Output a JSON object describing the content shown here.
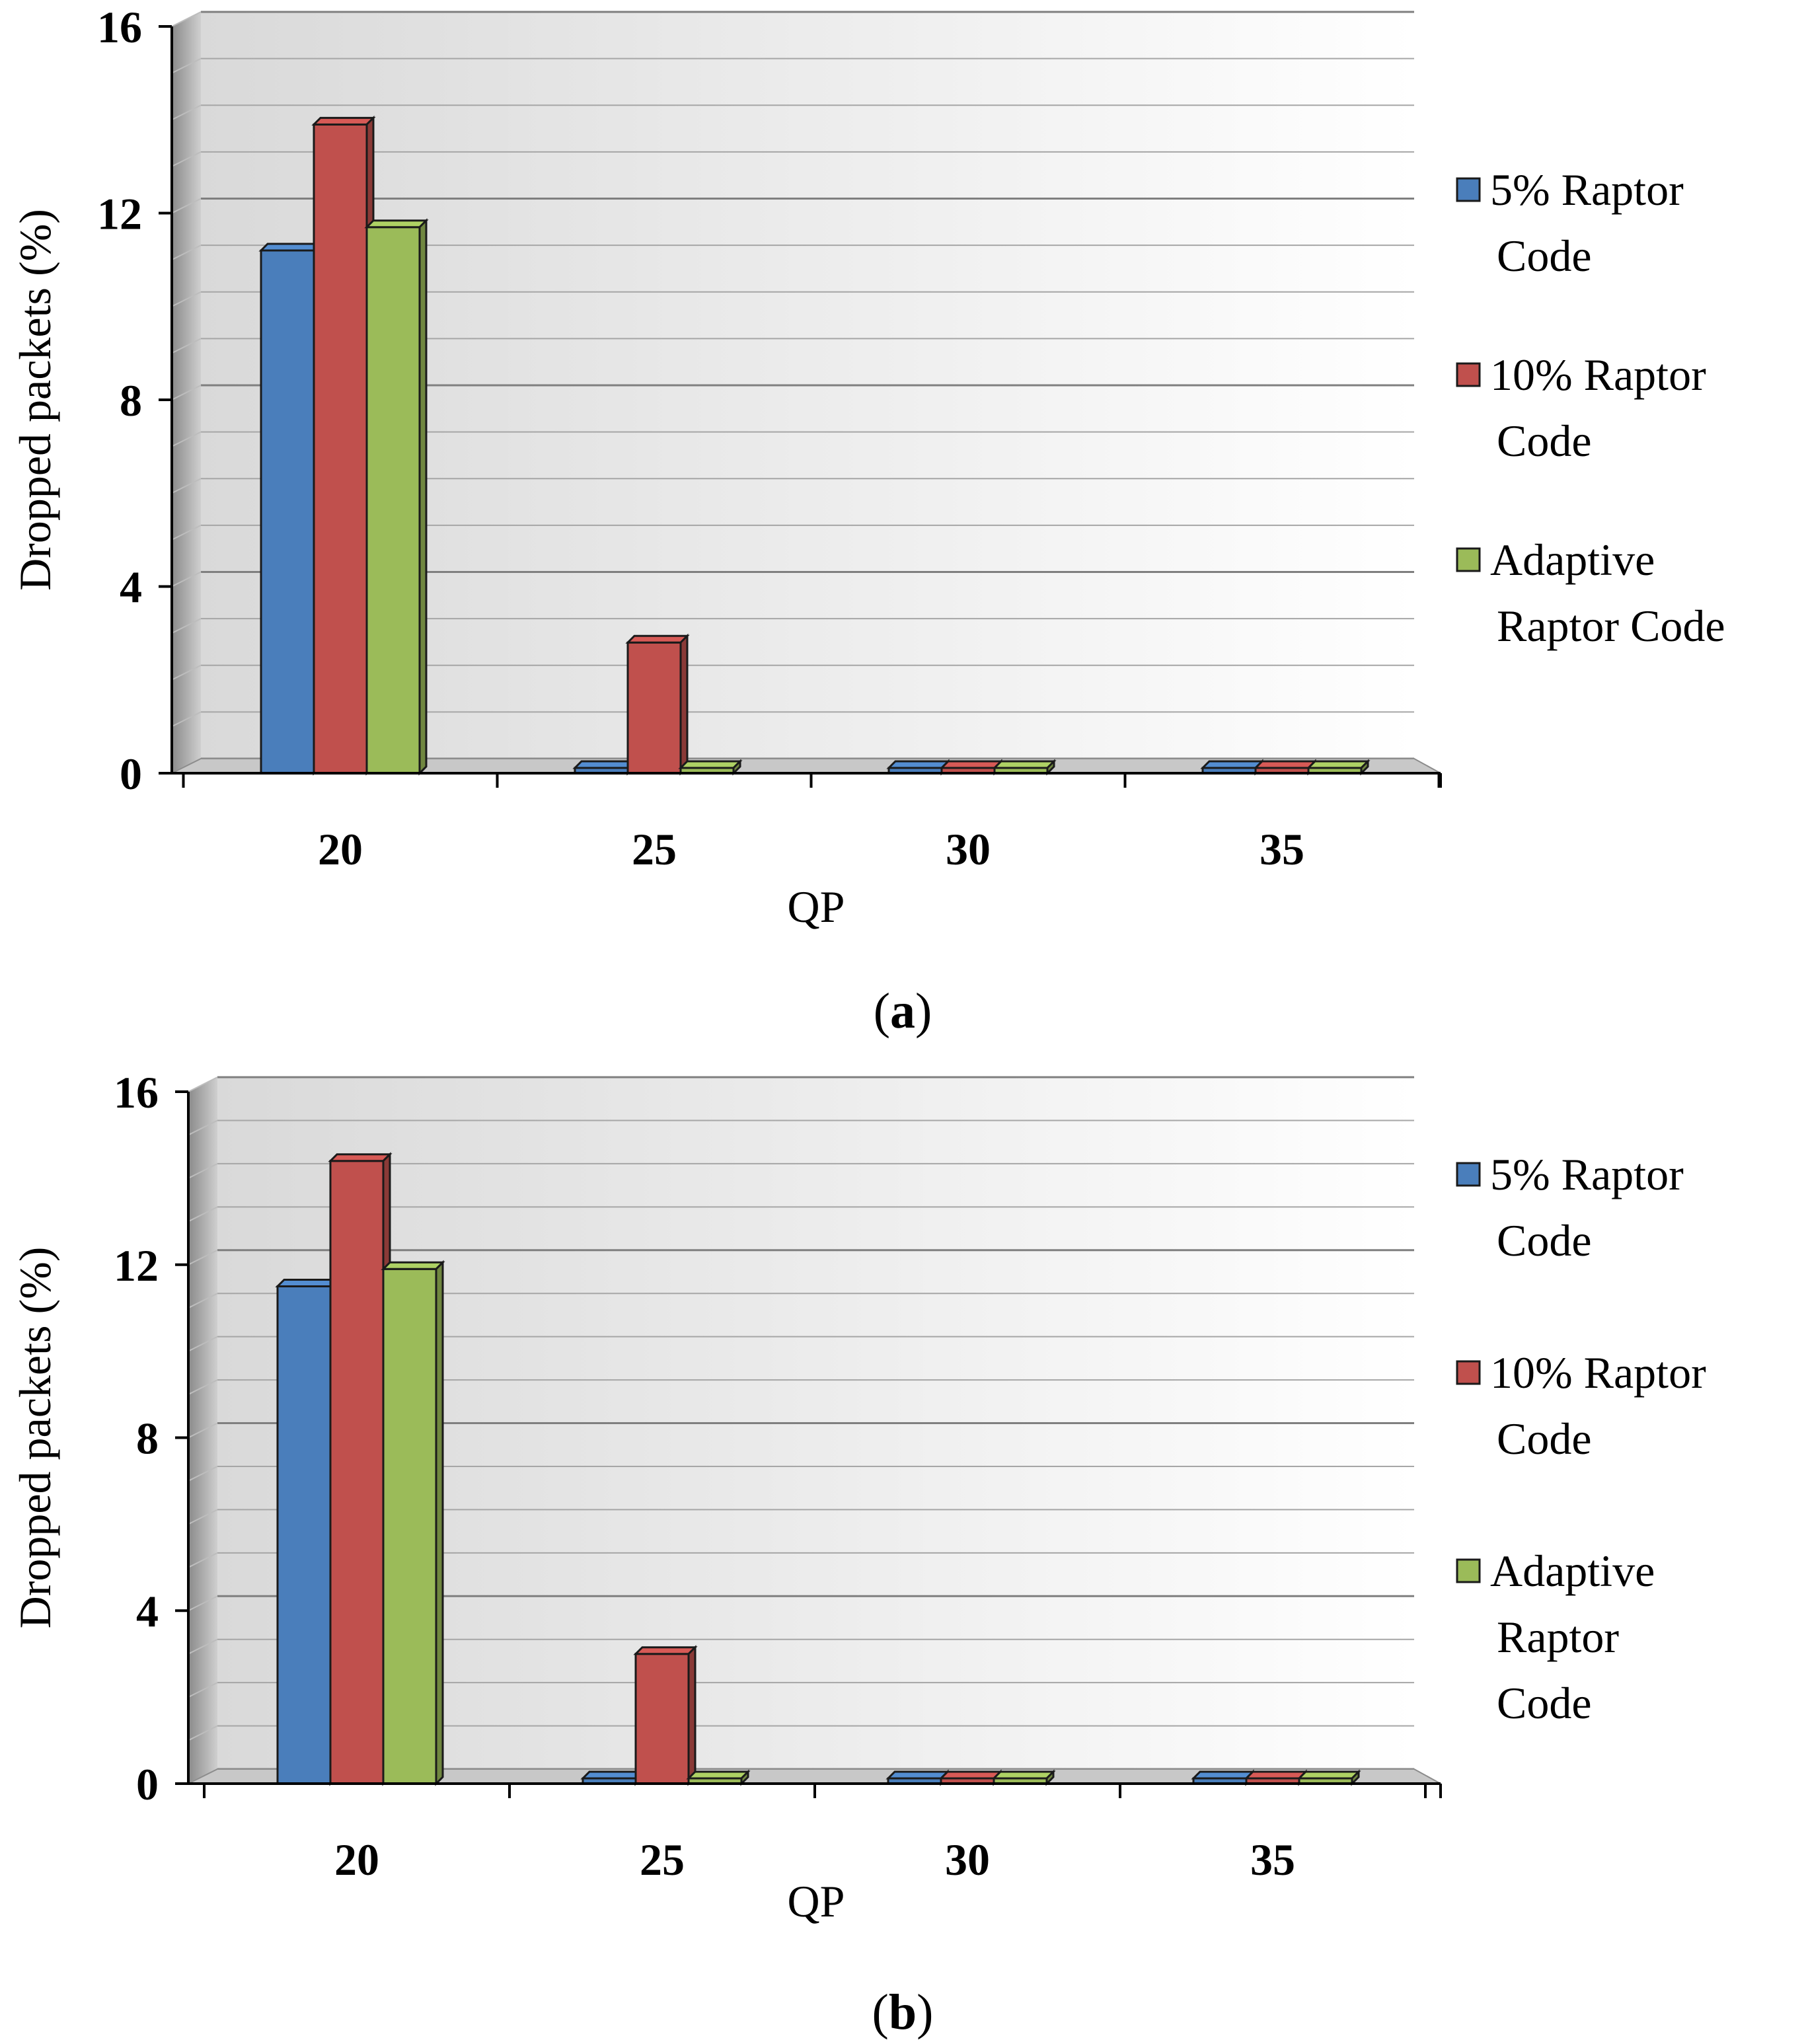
{
  "chart_data": [
    {
      "type": "bar",
      "panel_label": "a",
      "xlabel": "QP",
      "ylabel": "Dropped packets (%)",
      "categories": [
        "20",
        "25",
        "30",
        "35"
      ],
      "ylim": [
        0,
        16
      ],
      "yticks": [
        "0",
        "4",
        "8",
        "12",
        "16"
      ],
      "grid": true,
      "legend_position": "right",
      "series": [
        {
          "name": "5% Raptor Code",
          "legend_lines": [
            "5% Raptor",
            "Code"
          ],
          "color": "#4a7ebb",
          "values": [
            11.2,
            0,
            0,
            0
          ]
        },
        {
          "name": "10% Raptor Code",
          "legend_lines": [
            "10% Raptor",
            "Code"
          ],
          "color": "#c0504d",
          "values": [
            13.9,
            2.8,
            0,
            0
          ]
        },
        {
          "name": "Adaptive Raptor Code",
          "legend_lines": [
            "Adaptive",
            "Raptor Code"
          ],
          "color": "#9bbb59",
          "values": [
            11.7,
            0,
            0,
            0
          ]
        }
      ]
    },
    {
      "type": "bar",
      "panel_label": "b",
      "xlabel": "QP",
      "ylabel": "Dropped packets (%)",
      "categories": [
        "20",
        "25",
        "30",
        "35"
      ],
      "ylim": [
        0,
        16
      ],
      "yticks": [
        "0",
        "4",
        "8",
        "12",
        "16"
      ],
      "grid": true,
      "legend_position": "right",
      "series": [
        {
          "name": "5% Raptor Code",
          "legend_lines": [
            "5% Raptor",
            "Code"
          ],
          "color": "#4a7ebb",
          "values": [
            11.5,
            0,
            0,
            0
          ]
        },
        {
          "name": "10% Raptor Code",
          "legend_lines": [
            "10% Raptor",
            "Code"
          ],
          "color": "#c0504d",
          "values": [
            14.4,
            3.0,
            0,
            0
          ]
        },
        {
          "name": "Adaptive Raptor Code",
          "legend_lines": [
            "Adaptive",
            "Raptor",
            "Code"
          ],
          "color": "#9bbb59",
          "values": [
            11.9,
            0,
            0,
            0
          ]
        }
      ]
    }
  ]
}
